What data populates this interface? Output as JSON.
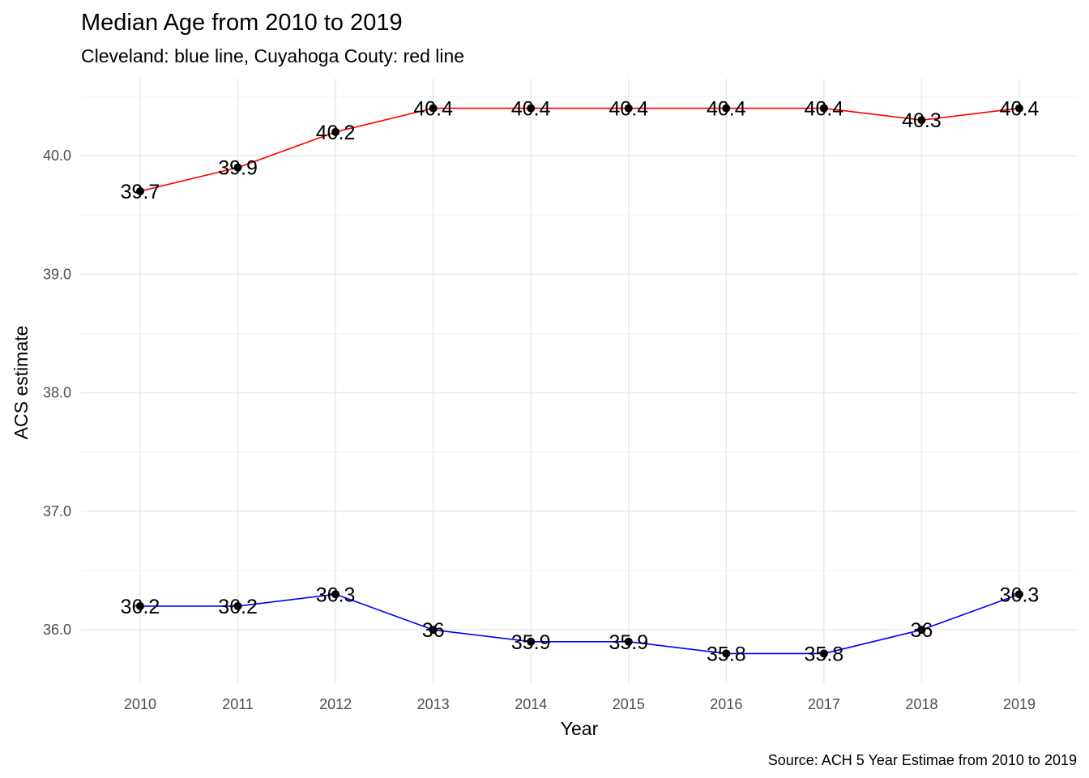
{
  "chart_data": {
    "type": "line",
    "title": "Median Age from 2010 to 2019",
    "subtitle": "Cleveland: blue line, Cuyahoga Couty: red line",
    "caption": "Source: ACH 5 Year Estimae from 2010 to 2019",
    "xlabel": "Year",
    "ylabel": "ACS estimate",
    "x": [
      2010,
      2011,
      2012,
      2013,
      2014,
      2015,
      2016,
      2017,
      2018,
      2019
    ],
    "x_tick_labels": [
      "2010",
      "2011",
      "2012",
      "2013",
      "2014",
      "2015",
      "2016",
      "2017",
      "2018",
      "2019"
    ],
    "y_ticks": [
      36.0,
      37.0,
      38.0,
      39.0,
      40.0
    ],
    "y_tick_labels": [
      "36.0",
      "37.0",
      "38.0",
      "39.0",
      "40.0"
    ],
    "ylim": [
      35.55,
      40.65
    ],
    "grid": true,
    "legend": "none",
    "series": [
      {
        "color": "#ff0000",
        "values": [
          39.7,
          39.9,
          40.2,
          40.4,
          40.4,
          40.4,
          40.4,
          40.4,
          40.3,
          40.4
        ],
        "labels": [
          "39.7",
          "39.9",
          "40.2",
          "40.4",
          "40.4",
          "40.4",
          "40.4",
          "40.4",
          "40.3",
          "40.4"
        ]
      },
      {
        "color": "#0000ff",
        "values": [
          36.2,
          36.2,
          36.3,
          36.0,
          35.9,
          35.9,
          35.8,
          35.8,
          36.0,
          36.3
        ],
        "labels": [
          "36.2",
          "36.2",
          "36.3",
          "36",
          "35.9",
          "35.9",
          "35.8",
          "35.8",
          "36",
          "36.3"
        ]
      }
    ],
    "point_color": "#000000"
  }
}
